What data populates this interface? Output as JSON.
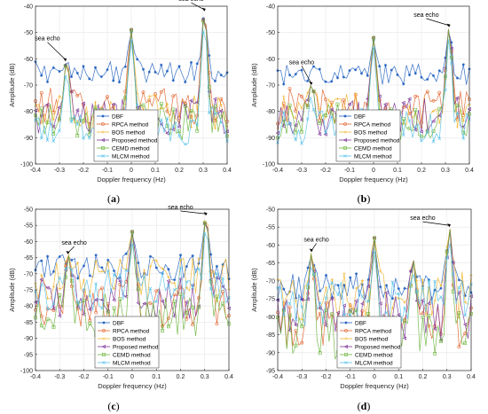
{
  "figure": {
    "panel_labels": [
      {
        "open": "(",
        "letter": "a",
        "close": ")"
      },
      {
        "open": "(",
        "letter": "b",
        "close": ")"
      },
      {
        "open": "(",
        "letter": "c",
        "close": ")"
      },
      {
        "open": "(",
        "letter": "d",
        "close": ")"
      }
    ]
  },
  "series_colors": {
    "DBF": "#1f5fbf",
    "RPCA method": "#e0612a",
    "BOS method": "#f0b429",
    "Proposed method": "#7b3296",
    "CEMD method": "#69b43a",
    "MLCM method": "#55c1ea"
  },
  "chart_data": [
    {
      "type": "line",
      "xlabel": "Doppler frequency (Hz)",
      "ylabel": "Amplitude (dB)",
      "xlim": [
        -0.4,
        0.4
      ],
      "ylim": [
        -100,
        -40
      ],
      "xticks": [
        -0.4,
        -0.3,
        -0.2,
        -0.1,
        0,
        0.1,
        0.2,
        0.3,
        0.4
      ],
      "yticks": [
        -100,
        -90,
        -80,
        -70,
        -60,
        -50,
        -40
      ],
      "grid": true,
      "legend": [
        "DBF",
        "RPCA method",
        "BOS method",
        "Proposed method",
        "CEMD method",
        "MLCM method"
      ],
      "legend_position": "bottom-center",
      "annotations": [
        {
          "text": "sea echo",
          "x": -0.275,
          "y": -61,
          "text_x": -0.35,
          "text_y": -53
        },
        {
          "text": "sea echo",
          "x": 0.305,
          "y": -42,
          "text_x": 0.25,
          "text_y": -38
        }
      ],
      "peaks": [
        {
          "x": -0.27,
          "y": -61
        },
        {
          "x": 0.0,
          "y": -49
        },
        {
          "x": 0.305,
          "y": -42
        }
      ],
      "floor": {
        "DBF": -65,
        "RPCA method": -78,
        "BOS method": -80,
        "Proposed method": -82,
        "CEMD method": -84,
        "MLCM method": -86
      }
    },
    {
      "type": "line",
      "xlabel": "Doppler frequency (Hz)",
      "ylabel": "Amplitude (dB)",
      "xlim": [
        -0.4,
        0.4
      ],
      "ylim": [
        -100,
        -40
      ],
      "xticks": [
        -0.4,
        -0.3,
        -0.2,
        -0.1,
        0,
        0.1,
        0.2,
        0.3,
        0.4
      ],
      "yticks": [
        -100,
        -90,
        -80,
        -70,
        -60,
        -50,
        -40
      ],
      "grid": true,
      "legend": [
        "DBF",
        "RPCA method",
        "BOS method",
        "Proposed method",
        "CEMD method",
        "MLCM method"
      ],
      "legend_position": "bottom-center",
      "annotations": [
        {
          "text": "sea echo",
          "x": -0.26,
          "y": -70,
          "text_x": -0.3,
          "text_y": -62
        },
        {
          "text": "sea echo",
          "x": 0.315,
          "y": -48,
          "text_x": 0.22,
          "text_y": -44
        }
      ],
      "peaks": [
        {
          "x": -0.26,
          "y": -70
        },
        {
          "x": 0.0,
          "y": -52
        },
        {
          "x": 0.315,
          "y": -48
        }
      ],
      "floor": {
        "DBF": -66,
        "RPCA method": -78,
        "BOS method": -80,
        "Proposed method": -82,
        "CEMD method": -84,
        "MLCM method": -86
      }
    },
    {
      "type": "line",
      "xlabel": "Doppler frequency (Hz)",
      "ylabel": "Amplitude (dB)",
      "xlim": [
        -0.4,
        0.4
      ],
      "ylim": [
        -100,
        -50
      ],
      "xticks": [
        -0.4,
        -0.3,
        -0.2,
        -0.1,
        0,
        0.1,
        0.2,
        0.3,
        0.4
      ],
      "yticks": [
        -100,
        -95,
        -90,
        -85,
        -80,
        -75,
        -70,
        -65,
        -60,
        -55,
        -50
      ],
      "grid": true,
      "legend": [
        "DBF",
        "RPCA method",
        "BOS method",
        "Proposed method",
        "CEMD method",
        "MLCM method"
      ],
      "legend_position": "bottom-center",
      "annotations": [
        {
          "text": "sea echo",
          "x": -0.265,
          "y": -64,
          "text_x": -0.24,
          "text_y": -61
        },
        {
          "text": "sea echo",
          "x": 0.305,
          "y": -52,
          "text_x": 0.2,
          "text_y": -50
        }
      ],
      "peaks": [
        {
          "x": -0.265,
          "y": -64
        },
        {
          "x": 0.0,
          "y": -57
        },
        {
          "x": 0.305,
          "y": -52
        }
      ],
      "floor": {
        "DBF": -68,
        "RPCA method": -80,
        "BOS method": -72,
        "Proposed method": -78,
        "CEMD method": -83,
        "MLCM method": -75
      }
    },
    {
      "type": "line",
      "xlabel": "Doppler frequency (Hz)",
      "ylabel": "Amplitude (dB)",
      "xlim": [
        -0.4,
        0.4
      ],
      "ylim": [
        -95,
        -50
      ],
      "xticks": [
        -0.4,
        -0.3,
        -0.2,
        -0.1,
        0,
        0.1,
        0.2,
        0.3,
        0.4
      ],
      "yticks": [
        -95,
        -90,
        -85,
        -80,
        -75,
        -70,
        -65,
        -60,
        -55,
        -50
      ],
      "grid": true,
      "legend": [
        "DBF",
        "RPCA method",
        "BOS method",
        "Proposed method",
        "CEMD method",
        "MLCM method"
      ],
      "legend_position": "bottom-center",
      "annotations": [
        {
          "text": "sea echo",
          "x": -0.26,
          "y": -62,
          "text_x": -0.24,
          "text_y": -59
        },
        {
          "text": "sea echo",
          "x": 0.31,
          "y": -55,
          "text_x": 0.2,
          "text_y": -53
        }
      ],
      "peaks": [
        {
          "x": -0.26,
          "y": -62
        },
        {
          "x": 0.0,
          "y": -58
        },
        {
          "x": 0.16,
          "y": -64
        },
        {
          "x": 0.31,
          "y": -55
        }
      ],
      "floor": {
        "DBF": -72,
        "RPCA method": -83,
        "BOS method": -74,
        "Proposed method": -80,
        "CEMD method": -85,
        "MLCM method": -77
      }
    }
  ]
}
